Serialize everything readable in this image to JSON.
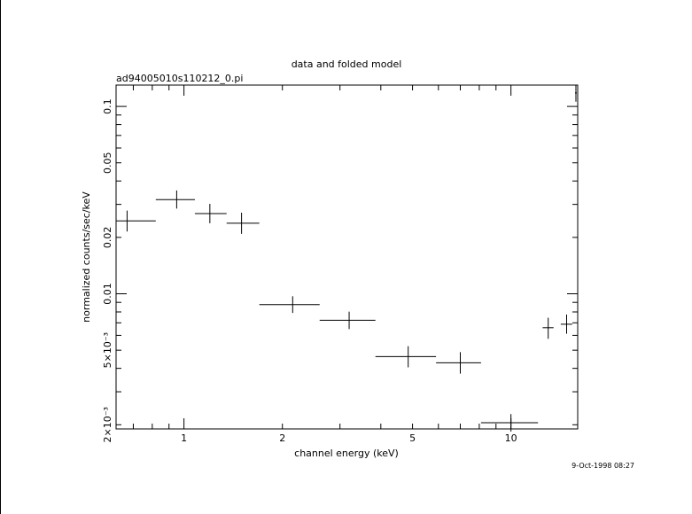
{
  "chart_data": {
    "type": "scatter",
    "title": "data and folded model",
    "subtitle": "ad94005010s110212_0.pi",
    "xlabel": "channel energy (keV)",
    "ylabel": "normalized counts/sec/keV",
    "x_scale": "log",
    "y_scale": "log",
    "xlim": [
      0.62,
      16.0
    ],
    "ylim": [
      0.0019,
      0.13
    ],
    "x_ticks": [
      {
        "value": 1,
        "label": "1"
      },
      {
        "value": 2,
        "label": "2"
      },
      {
        "value": 5,
        "label": "5"
      },
      {
        "value": 10,
        "label": "10"
      }
    ],
    "y_ticks": [
      {
        "value": 0.002,
        "label": "2×10⁻³"
      },
      {
        "value": 0.005,
        "label": "5×10⁻³"
      },
      {
        "value": 0.01,
        "label": "0.01"
      },
      {
        "value": 0.02,
        "label": "0.02"
      },
      {
        "value": 0.05,
        "label": "0.05"
      },
      {
        "value": 0.1,
        "label": "0.1"
      }
    ],
    "points": [
      {
        "x": 0.67,
        "xlo": 0.62,
        "xhi": 0.82,
        "y": 0.0245,
        "ylo": 0.0215,
        "yhi": 0.0278
      },
      {
        "x": 0.95,
        "xlo": 0.82,
        "xhi": 1.08,
        "y": 0.0318,
        "ylo": 0.0285,
        "yhi": 0.0356
      },
      {
        "x": 1.2,
        "xlo": 1.08,
        "xhi": 1.35,
        "y": 0.0268,
        "ylo": 0.0238,
        "yhi": 0.0302
      },
      {
        "x": 1.5,
        "xlo": 1.35,
        "xhi": 1.7,
        "y": 0.0238,
        "ylo": 0.0209,
        "yhi": 0.0271
      },
      {
        "x": 2.15,
        "xlo": 1.7,
        "xhi": 2.6,
        "y": 0.00875,
        "ylo": 0.0079,
        "yhi": 0.0097
      },
      {
        "x": 3.2,
        "xlo": 2.6,
        "xhi": 3.85,
        "y": 0.00722,
        "ylo": 0.00648,
        "yhi": 0.00803
      },
      {
        "x": 4.85,
        "xlo": 3.85,
        "xhi": 5.9,
        "y": 0.00462,
        "ylo": 0.00405,
        "yhi": 0.00525
      },
      {
        "x": 7.0,
        "xlo": 5.9,
        "xhi": 8.1,
        "y": 0.00428,
        "ylo": 0.00375,
        "yhi": 0.00488
      },
      {
        "x": 10.0,
        "xlo": 8.1,
        "xhi": 12.1,
        "y": 0.00205,
        "ylo": 0.00184,
        "yhi": 0.00228
      },
      {
        "x": 13.0,
        "xlo": 12.5,
        "xhi": 13.5,
        "y": 0.00659,
        "ylo": 0.00575,
        "yhi": 0.00745
      },
      {
        "x": 14.8,
        "xlo": 14.2,
        "xhi": 15.4,
        "y": 0.00688,
        "ylo": 0.00612,
        "yhi": 0.00775
      },
      {
        "x": 15.8,
        "xlo": 15.7,
        "xhi": 15.9,
        "y": 0.118,
        "ylo": 0.106,
        "yhi": 0.13
      }
    ]
  },
  "footer": {
    "timestamp": "9-Oct-1998 08:27"
  }
}
